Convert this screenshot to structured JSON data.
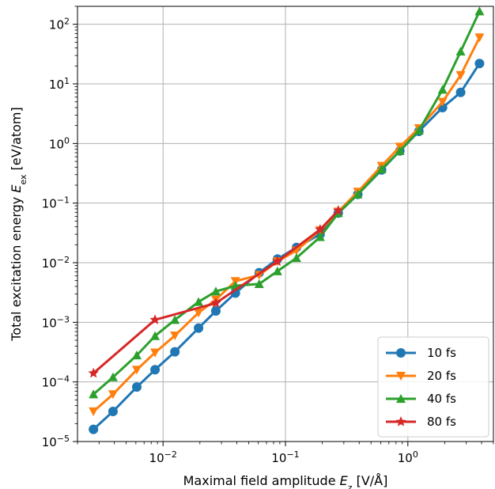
{
  "chart_data": {
    "type": "line",
    "xscale": "log",
    "yscale": "log",
    "xlim": [
      0.002,
      5.0
    ],
    "ylim": [
      1e-05,
      200
    ],
    "grid": true,
    "legend_position": "lower-right",
    "xlabel": {
      "prefix": "Maximal field amplitude ",
      "symbol": "E",
      "sub": "z",
      "suffix": " [V/Å]"
    },
    "ylabel": {
      "prefix": "Total excitation energy ",
      "symbol": "E",
      "sub": "ex",
      "suffix": " [eV/atom]"
    },
    "xticks": [
      {
        "value": 0.01,
        "base": "10",
        "exp": "−2"
      },
      {
        "value": 0.1,
        "base": "10",
        "exp": "−1"
      },
      {
        "value": 1,
        "base": "10",
        "exp": "0"
      }
    ],
    "yticks": [
      {
        "value": 1e-05,
        "base": "10",
        "exp": "−5"
      },
      {
        "value": 0.0001,
        "base": "10",
        "exp": "−4"
      },
      {
        "value": 0.001,
        "base": "10",
        "exp": "−3"
      },
      {
        "value": 0.01,
        "base": "10",
        "exp": "−2"
      },
      {
        "value": 0.1,
        "base": "10",
        "exp": "−1"
      },
      {
        "value": 1,
        "base": "10",
        "exp": "0"
      },
      {
        "value": 10,
        "base": "10",
        "exp": "1"
      },
      {
        "value": 100,
        "base": "10",
        "exp": "2"
      }
    ],
    "series": [
      {
        "name": "10 fs",
        "color": "#1f77b4",
        "marker": "circle",
        "points": [
          [
            0.0027,
            1.6e-05
          ],
          [
            0.0039,
            3.2e-05
          ],
          [
            0.0061,
            8.2e-05
          ],
          [
            0.0086,
            0.00016
          ],
          [
            0.0125,
            0.00032
          ],
          [
            0.0195,
            0.0008
          ],
          [
            0.027,
            0.00155
          ],
          [
            0.039,
            0.0031
          ],
          [
            0.061,
            0.0068
          ],
          [
            0.086,
            0.0115
          ],
          [
            0.123,
            0.018
          ],
          [
            0.192,
            0.03
          ],
          [
            0.27,
            0.068
          ],
          [
            0.39,
            0.14
          ],
          [
            0.61,
            0.36
          ],
          [
            0.86,
            0.75
          ],
          [
            1.23,
            1.6
          ],
          [
            1.92,
            4.0
          ],
          [
            2.7,
            7.2
          ],
          [
            3.85,
            22
          ]
        ]
      },
      {
        "name": "20 fs",
        "color": "#ff7f0e",
        "marker": "triangle-down",
        "points": [
          [
            0.0027,
            3.2e-05
          ],
          [
            0.0039,
            6.2e-05
          ],
          [
            0.0061,
            0.00016
          ],
          [
            0.0086,
            0.00031
          ],
          [
            0.0125,
            0.0006
          ],
          [
            0.0195,
            0.00145
          ],
          [
            0.027,
            0.0024
          ],
          [
            0.039,
            0.0049
          ],
          [
            0.061,
            0.0062
          ],
          [
            0.086,
            0.0105
          ],
          [
            0.123,
            0.016
          ],
          [
            0.192,
            0.035
          ],
          [
            0.27,
            0.072
          ],
          [
            0.39,
            0.155
          ],
          [
            0.61,
            0.42
          ],
          [
            0.86,
            0.88
          ],
          [
            1.23,
            1.8
          ],
          [
            1.92,
            5.0
          ],
          [
            2.7,
            14
          ],
          [
            3.85,
            60
          ]
        ]
      },
      {
        "name": "40 fs",
        "color": "#2ca02c",
        "marker": "triangle-up",
        "points": [
          [
            0.0027,
            6.2e-05
          ],
          [
            0.0039,
            0.00012
          ],
          [
            0.0061,
            0.00028
          ],
          [
            0.0086,
            0.00059
          ],
          [
            0.0125,
            0.0011
          ],
          [
            0.0195,
            0.0022
          ],
          [
            0.027,
            0.0033
          ],
          [
            0.039,
            0.0041
          ],
          [
            0.061,
            0.0044
          ],
          [
            0.086,
            0.0072
          ],
          [
            0.123,
            0.012
          ],
          [
            0.192,
            0.027
          ],
          [
            0.27,
            0.068
          ],
          [
            0.39,
            0.14
          ],
          [
            0.61,
            0.37
          ],
          [
            0.86,
            0.75
          ],
          [
            1.23,
            1.65
          ],
          [
            1.92,
            8.0
          ],
          [
            2.7,
            35
          ],
          [
            3.85,
            165
          ]
        ]
      },
      {
        "name": "80 fs",
        "color": "#d62728",
        "marker": "star",
        "points": [
          [
            0.0027,
            0.00014
          ],
          [
            0.0086,
            0.0011
          ],
          [
            0.027,
            0.0021
          ],
          [
            0.086,
            0.0105
          ],
          [
            0.192,
            0.036
          ],
          [
            0.27,
            0.075
          ]
        ]
      }
    ]
  }
}
